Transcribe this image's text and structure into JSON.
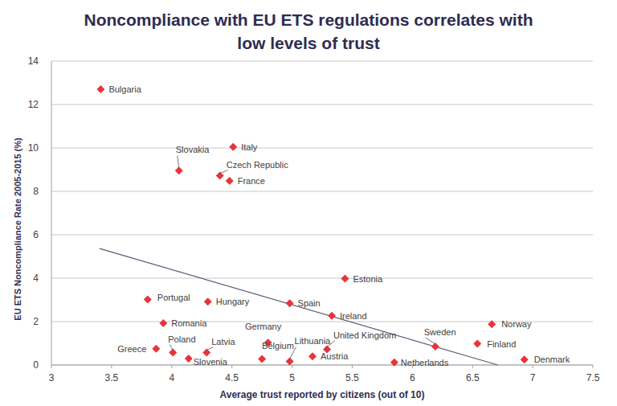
{
  "chart_data": {
    "type": "scatter",
    "title": "Noncompliance with EU ETS regulations correlates with low levels of trust",
    "x_label": "Average trust reported by citizens (out of 10)",
    "y_label": "EU ETS Noncompliance Rate 2005-2015  (%)",
    "categories": [
      "Bulgaria",
      "Italy",
      "Slovakia",
      "Czech Republic",
      "France",
      "Estonia",
      "Portugal",
      "Hungary",
      "Spain",
      "Ireland",
      "Romania",
      "Norway",
      "Sweden",
      "Finland",
      "Denmark",
      "Germany",
      "Lithuania",
      "Belgium",
      "Austria",
      "United Kingdom",
      "Netherlands",
      "Greece",
      "Poland",
      "Latvia",
      "Slovenia"
    ],
    "x": [
      3.41,
      4.51,
      4.06,
      4.4,
      4.48,
      5.44,
      3.8,
      4.3,
      4.98,
      5.33,
      3.93,
      6.66,
      6.19,
      6.54,
      6.93,
      4.8,
      4.98,
      4.75,
      5.17,
      5.29,
      5.85,
      3.87,
      4.01,
      4.29,
      4.14
    ],
    "values": [
      12.7,
      10.05,
      8.95,
      8.72,
      8.48,
      3.98,
      3.02,
      2.92,
      2.84,
      2.27,
      1.93,
      1.88,
      0.85,
      0.98,
      0.25,
      1.03,
      0.17,
      0.28,
      0.4,
      0.72,
      0.12,
      0.75,
      0.57,
      0.57,
      0.3
    ],
    "color": "#e8343a",
    "marker": "diamond",
    "series": [
      {
        "type": "line",
        "x": [
          3.4,
          6.71
        ],
        "values": [
          5.37,
          0
        ],
        "color": "#5b5b78",
        "line_style": "solid"
      }
    ],
    "xlim": [
      3,
      7.5
    ],
    "xticks": [
      3,
      3.5,
      4,
      4.5,
      5,
      5.5,
      6,
      6.5,
      7,
      7.5
    ],
    "ylim": [
      0,
      14
    ],
    "yticks": [
      0,
      2,
      4,
      6,
      8,
      10,
      12,
      14
    ],
    "grid": true
  }
}
